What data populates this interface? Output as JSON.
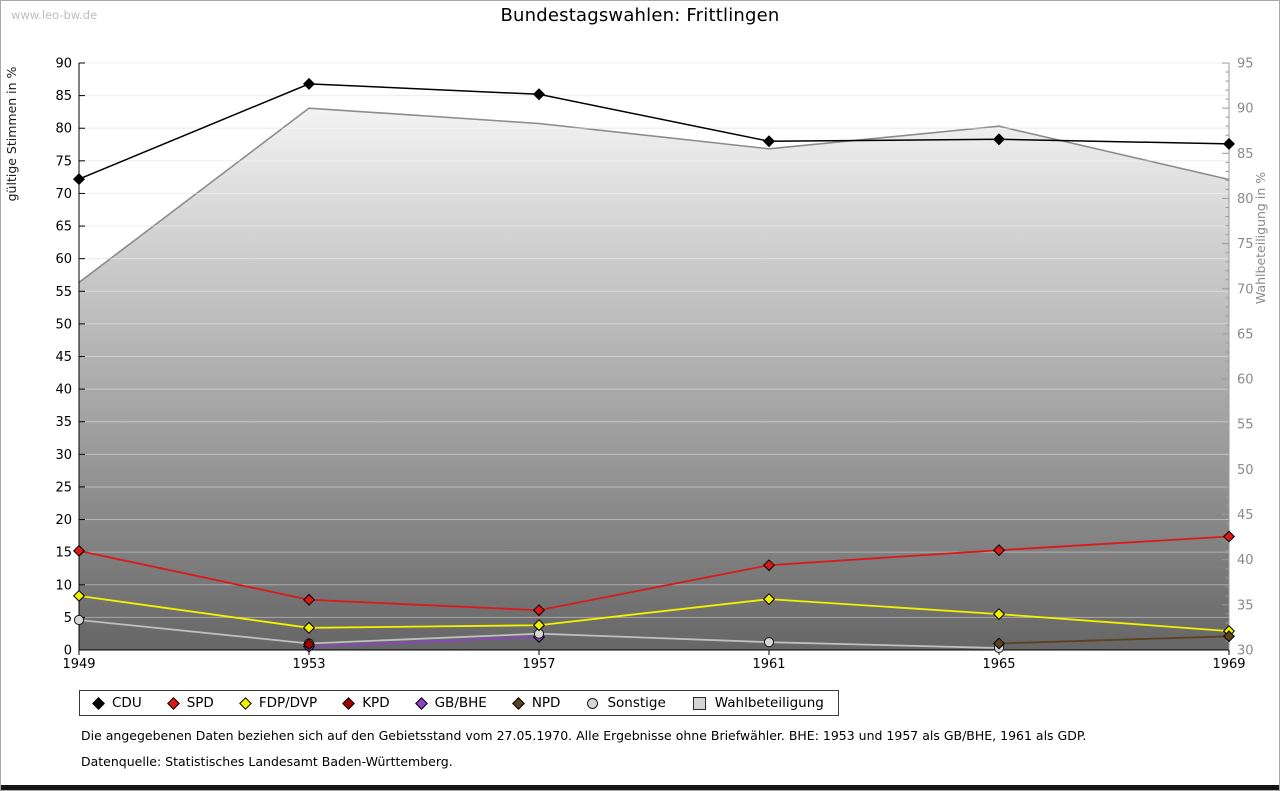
{
  "page": {
    "watermark": "www.leo-bw.de",
    "title": "Bundestagswahlen: Frittlingen",
    "footnote1": "Die angegebenen Daten beziehen sich auf den Gebietsstand vom 27.05.1970. Alle Ergebnisse ohne Briefwähler. BHE: 1953 und 1957 als GB/BHE, 1961 als GDP.",
    "footnote2": "Datenquelle: Statistisches Landesamt Baden-Württemberg."
  },
  "chart_data": {
    "type": "line",
    "title": "Bundestagswahlen: Frittlingen",
    "x_years": [
      1949,
      1953,
      1957,
      1961,
      1965,
      1969
    ],
    "left_axis": {
      "label": "gültige Stimmen in %",
      "min": 0,
      "max": 90,
      "tick_step": 5
    },
    "right_axis": {
      "label": "Wahlbeteiligung in %",
      "min": 30,
      "max": 95,
      "tick_step": 5,
      "minor_step": 1
    },
    "grid": "horizontal",
    "legend_position": "bottom",
    "series": [
      {
        "name": "CDU",
        "axis": "left",
        "color": "#000000",
        "swatch": "#000000",
        "marker": "diamond",
        "values": [
          72.2,
          86.8,
          85.2,
          78.0,
          78.3,
          77.6
        ]
      },
      {
        "name": "SPD",
        "axis": "left",
        "color": "#d91a1a",
        "swatch": "#d91a1a",
        "marker": "diamond",
        "values": [
          15.2,
          7.7,
          6.1,
          13.0,
          15.3,
          17.4
        ]
      },
      {
        "name": "FDP/DVP",
        "axis": "left",
        "color": "#f2f200",
        "swatch": "#f2f200",
        "marker": "diamond",
        "values": [
          8.3,
          3.4,
          3.8,
          7.8,
          5.5,
          2.9
        ]
      },
      {
        "name": "KPD",
        "axis": "left",
        "color": "#a30000",
        "swatch": "#a30000",
        "marker": "diamond",
        "values": [
          null,
          0.9,
          null,
          null,
          null,
          null
        ]
      },
      {
        "name": "GB/BHE",
        "axis": "left",
        "color": "#8d44c4",
        "swatch": "#8d44c4",
        "marker": "diamond",
        "values": [
          null,
          0.5,
          2.0,
          null,
          null,
          null
        ]
      },
      {
        "name": "NPD",
        "axis": "left",
        "color": "#5d4120",
        "swatch": "#5d4120",
        "marker": "diamond",
        "values": [
          null,
          null,
          null,
          null,
          1.0,
          2.1
        ]
      },
      {
        "name": "Sonstige",
        "axis": "left",
        "color": "#bfbfbf",
        "swatch": "#d6d6d6",
        "marker": "circle",
        "values": [
          4.6,
          1.0,
          2.5,
          1.2,
          0.3,
          null
        ]
      },
      {
        "name": "Wahlbeteiligung",
        "axis": "right",
        "color": "#8c8c8c",
        "swatch": "#d4d4d4",
        "marker": "square",
        "type": "area",
        "area_gradient": {
          "top": "#ffffff",
          "bottom": "#666666"
        },
        "values": [
          70.7,
          90.0,
          88.3,
          85.5,
          88.0,
          82.1
        ]
      }
    ]
  }
}
